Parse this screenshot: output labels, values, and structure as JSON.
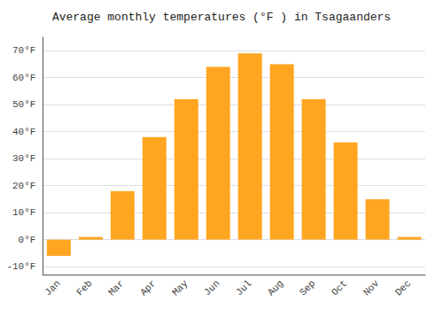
{
  "chart_data": {
    "type": "bar",
    "title": "Average monthly temperatures (°F ) in Tsagaanders",
    "categories": [
      "Jan",
      "Feb",
      "Mar",
      "Apr",
      "May",
      "Jun",
      "Jul",
      "Aug",
      "Sep",
      "Oct",
      "Nov",
      "Dec"
    ],
    "values": [
      -6,
      1,
      18,
      38,
      52,
      64,
      69,
      65,
      52,
      36,
      15,
      1
    ],
    "color": "#FFA520",
    "ylim": [
      -13,
      75
    ],
    "yticks": [
      {
        "value": -10,
        "label": "-10°F"
      },
      {
        "value": 0,
        "label": "0°F"
      },
      {
        "value": 10,
        "label": "10°F"
      },
      {
        "value": 20,
        "label": "20°F"
      },
      {
        "value": 30,
        "label": "30°F"
      },
      {
        "value": 40,
        "label": "40°F"
      },
      {
        "value": 50,
        "label": "50°F"
      },
      {
        "value": 60,
        "label": "60°F"
      },
      {
        "value": 70,
        "label": "70°F"
      }
    ],
    "grid": true
  }
}
